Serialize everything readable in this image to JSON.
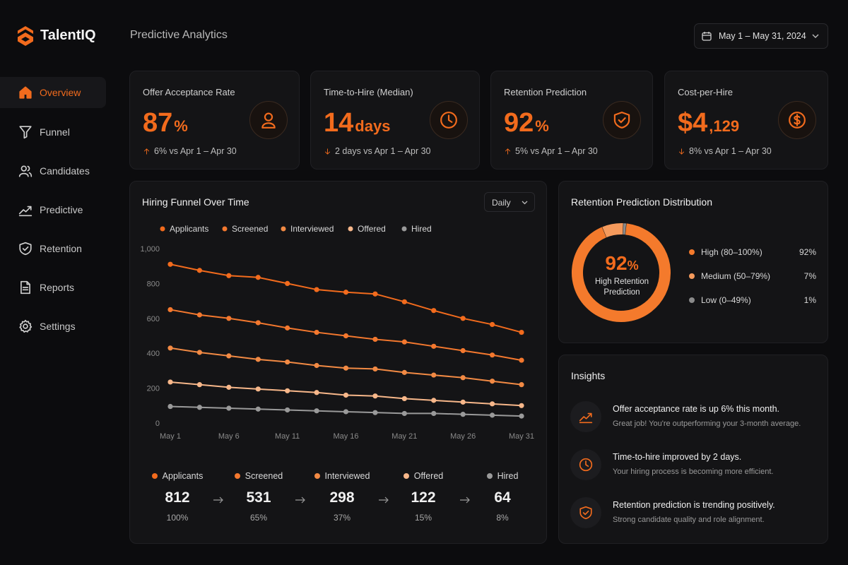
{
  "sidebar": {
    "brand": "TalentIQ",
    "nav": [
      "Overview",
      "Funnel",
      "Candidates",
      "Predictive",
      "Retention",
      "Reports",
      "Settings"
    ]
  },
  "header": {
    "title": "Predictive Analytics",
    "date_range": "May 1 – May 31, 2024"
  },
  "kpis": [
    {
      "label": "Offer Acceptance Rate",
      "value": "87",
      "unit": "%",
      "change": "6% vs Apr 1 – Apr 30",
      "trend": "up"
    },
    {
      "label": "Time-to-Hire (Median)",
      "value": "14",
      "unit": "days",
      "change": "2 days vs Apr 1 – Apr 30",
      "trend": "down"
    },
    {
      "label": "Retention Prediction",
      "value": "92",
      "unit": "%",
      "change": "5% vs Apr 1 – Apr 30",
      "trend": "up"
    },
    {
      "label": "Cost-per-Hire",
      "value": "$4",
      "unit": ",129",
      "change": "8% vs Apr 1 – Apr 30",
      "trend": "down"
    }
  ],
  "funnel_chart": {
    "type": "line",
    "title": "Hiring Funnel Over Time",
    "period": "Daily",
    "categories": [
      "May 1",
      null,
      "May 6",
      null,
      "May 11",
      null,
      "May 16",
      null,
      "May 21",
      null,
      "May 26",
      null,
      "May 31"
    ],
    "series": [
      {
        "name": "Applicants",
        "color": "#f26b1d",
        "values": [
          910,
          875,
          845,
          835,
          800,
          765,
          750,
          740,
          695,
          645,
          600,
          565,
          520
        ]
      },
      {
        "name": "Screened",
        "color": "#f4782e",
        "values": [
          650,
          620,
          600,
          575,
          545,
          520,
          500,
          480,
          465,
          440,
          415,
          390,
          360
        ]
      },
      {
        "name": "Interviewed",
        "color": "#f28a44",
        "values": [
          430,
          405,
          385,
          365,
          350,
          330,
          315,
          310,
          290,
          275,
          260,
          240,
          220
        ]
      },
      {
        "name": "Offered",
        "color": "#f7b78a",
        "values": [
          235,
          220,
          205,
          195,
          185,
          175,
          160,
          155,
          140,
          130,
          120,
          110,
          100
        ]
      },
      {
        "name": "Hired",
        "color": "#9a9a9a",
        "values": [
          95,
          90,
          85,
          80,
          75,
          70,
          65,
          60,
          55,
          55,
          50,
          45,
          40
        ]
      }
    ],
    "ylim": [
      0,
      1000
    ],
    "yticks": [
      0,
      200,
      400,
      600,
      800,
      {
        "value": 1000,
        "label": "1,000"
      }
    ],
    "grid": false
  },
  "funnel_summary": [
    {
      "stage": "Applicants",
      "count": "812",
      "share": "100%",
      "color": "#f26b1d"
    },
    {
      "stage": "Screened",
      "count": "531",
      "share": "65%",
      "color": "#f4782e"
    },
    {
      "stage": "Interviewed",
      "count": "298",
      "share": "37%",
      "color": "#f28a44"
    },
    {
      "stage": "Offered",
      "count": "122",
      "share": "15%",
      "color": "#f7b78a"
    },
    {
      "stage": "Hired",
      "count": "64",
      "share": "8%",
      "color": "#9a9a9a"
    }
  ],
  "retention_chart": {
    "type": "pie",
    "title": "Retention Prediction Distribution",
    "center_value": "92",
    "center_unit": "%",
    "center_label": "High Retention Prediction",
    "categories": [
      "High (80–100%)",
      "Medium (50–79%)",
      "Low (0–49%)"
    ],
    "values": [
      92,
      7,
      1
    ],
    "value_labels": [
      "92%",
      "7%",
      "1%"
    ],
    "colors": [
      "#f47a2c",
      "#f59a5c",
      "#8a8a8a"
    ]
  },
  "insights": [
    {
      "icon": "trend",
      "title": "Offer acceptance rate is up 6% this month.",
      "text": "Great job! You're outperforming your 3-month average."
    },
    {
      "icon": "clock",
      "title": "Time-to-hire improved by 2 days.",
      "text": "Your hiring process is becoming more efficient."
    },
    {
      "icon": "shield",
      "title": "Retention prediction is trending positively.",
      "text": "Strong candidate quality and role alignment."
    }
  ]
}
